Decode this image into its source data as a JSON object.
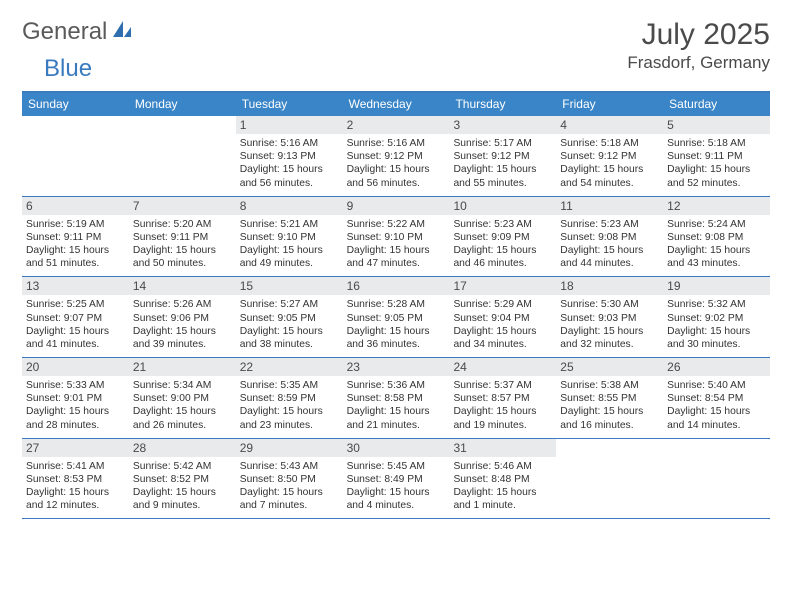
{
  "brand": {
    "word1": "General",
    "word2": "Blue"
  },
  "title": "July 2025",
  "location": "Frasdorf, Germany",
  "colors": {
    "header_bg": "#3a85c7",
    "border": "#3a7bbf",
    "daynum_bg": "#e9eaec",
    "text": "#333333",
    "title_text": "#4a4a4a"
  },
  "layout": {
    "columns": 7,
    "rows": 5,
    "day_header_fontsize": 12,
    "body_fontsize": 10.3,
    "title_fontsize": 30,
    "location_fontsize": 17
  },
  "dow": [
    "Sunday",
    "Monday",
    "Tuesday",
    "Wednesday",
    "Thursday",
    "Friday",
    "Saturday"
  ],
  "weeks": [
    [
      null,
      null,
      {
        "n": "1",
        "sr": "5:16 AM",
        "ss": "9:13 PM",
        "dl": "15 hours and 56 minutes."
      },
      {
        "n": "2",
        "sr": "5:16 AM",
        "ss": "9:12 PM",
        "dl": "15 hours and 56 minutes."
      },
      {
        "n": "3",
        "sr": "5:17 AM",
        "ss": "9:12 PM",
        "dl": "15 hours and 55 minutes."
      },
      {
        "n": "4",
        "sr": "5:18 AM",
        "ss": "9:12 PM",
        "dl": "15 hours and 54 minutes."
      },
      {
        "n": "5",
        "sr": "5:18 AM",
        "ss": "9:11 PM",
        "dl": "15 hours and 52 minutes."
      }
    ],
    [
      {
        "n": "6",
        "sr": "5:19 AM",
        "ss": "9:11 PM",
        "dl": "15 hours and 51 minutes."
      },
      {
        "n": "7",
        "sr": "5:20 AM",
        "ss": "9:11 PM",
        "dl": "15 hours and 50 minutes."
      },
      {
        "n": "8",
        "sr": "5:21 AM",
        "ss": "9:10 PM",
        "dl": "15 hours and 49 minutes."
      },
      {
        "n": "9",
        "sr": "5:22 AM",
        "ss": "9:10 PM",
        "dl": "15 hours and 47 minutes."
      },
      {
        "n": "10",
        "sr": "5:23 AM",
        "ss": "9:09 PM",
        "dl": "15 hours and 46 minutes."
      },
      {
        "n": "11",
        "sr": "5:23 AM",
        "ss": "9:08 PM",
        "dl": "15 hours and 44 minutes."
      },
      {
        "n": "12",
        "sr": "5:24 AM",
        "ss": "9:08 PM",
        "dl": "15 hours and 43 minutes."
      }
    ],
    [
      {
        "n": "13",
        "sr": "5:25 AM",
        "ss": "9:07 PM",
        "dl": "15 hours and 41 minutes."
      },
      {
        "n": "14",
        "sr": "5:26 AM",
        "ss": "9:06 PM",
        "dl": "15 hours and 39 minutes."
      },
      {
        "n": "15",
        "sr": "5:27 AM",
        "ss": "9:05 PM",
        "dl": "15 hours and 38 minutes."
      },
      {
        "n": "16",
        "sr": "5:28 AM",
        "ss": "9:05 PM",
        "dl": "15 hours and 36 minutes."
      },
      {
        "n": "17",
        "sr": "5:29 AM",
        "ss": "9:04 PM",
        "dl": "15 hours and 34 minutes."
      },
      {
        "n": "18",
        "sr": "5:30 AM",
        "ss": "9:03 PM",
        "dl": "15 hours and 32 minutes."
      },
      {
        "n": "19",
        "sr": "5:32 AM",
        "ss": "9:02 PM",
        "dl": "15 hours and 30 minutes."
      }
    ],
    [
      {
        "n": "20",
        "sr": "5:33 AM",
        "ss": "9:01 PM",
        "dl": "15 hours and 28 minutes."
      },
      {
        "n": "21",
        "sr": "5:34 AM",
        "ss": "9:00 PM",
        "dl": "15 hours and 26 minutes."
      },
      {
        "n": "22",
        "sr": "5:35 AM",
        "ss": "8:59 PM",
        "dl": "15 hours and 23 minutes."
      },
      {
        "n": "23",
        "sr": "5:36 AM",
        "ss": "8:58 PM",
        "dl": "15 hours and 21 minutes."
      },
      {
        "n": "24",
        "sr": "5:37 AM",
        "ss": "8:57 PM",
        "dl": "15 hours and 19 minutes."
      },
      {
        "n": "25",
        "sr": "5:38 AM",
        "ss": "8:55 PM",
        "dl": "15 hours and 16 minutes."
      },
      {
        "n": "26",
        "sr": "5:40 AM",
        "ss": "8:54 PM",
        "dl": "15 hours and 14 minutes."
      }
    ],
    [
      {
        "n": "27",
        "sr": "5:41 AM",
        "ss": "8:53 PM",
        "dl": "15 hours and 12 minutes."
      },
      {
        "n": "28",
        "sr": "5:42 AM",
        "ss": "8:52 PM",
        "dl": "15 hours and 9 minutes."
      },
      {
        "n": "29",
        "sr": "5:43 AM",
        "ss": "8:50 PM",
        "dl": "15 hours and 7 minutes."
      },
      {
        "n": "30",
        "sr": "5:45 AM",
        "ss": "8:49 PM",
        "dl": "15 hours and 4 minutes."
      },
      {
        "n": "31",
        "sr": "5:46 AM",
        "ss": "8:48 PM",
        "dl": "15 hours and 1 minute."
      },
      null,
      null
    ]
  ],
  "labels": {
    "sunrise": "Sunrise:",
    "sunset": "Sunset:",
    "daylight": "Daylight:"
  }
}
